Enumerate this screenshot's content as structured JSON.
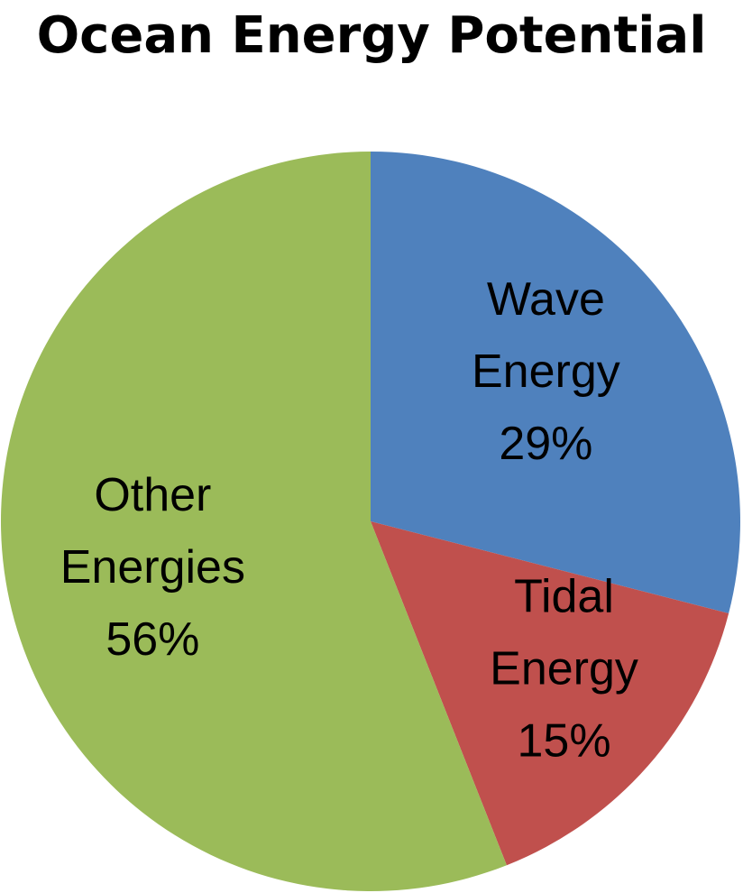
{
  "chart_data": {
    "type": "pie",
    "title": "Ocean Energy Potential",
    "slices": [
      {
        "label_lines": [
          "Wave",
          "Energy"
        ],
        "value": 29,
        "value_label": "29%",
        "color": "#4F81BD"
      },
      {
        "label_lines": [
          "Tidal",
          "Energy"
        ],
        "value": 15,
        "value_label": "15%",
        "color": "#C0504D"
      },
      {
        "label_lines": [
          "Other",
          "Energies"
        ],
        "value": 56,
        "value_label": "56%",
        "color": "#9BBB59"
      }
    ],
    "legend": "none",
    "start_angle": "12 o'clock",
    "direction": "clockwise"
  }
}
